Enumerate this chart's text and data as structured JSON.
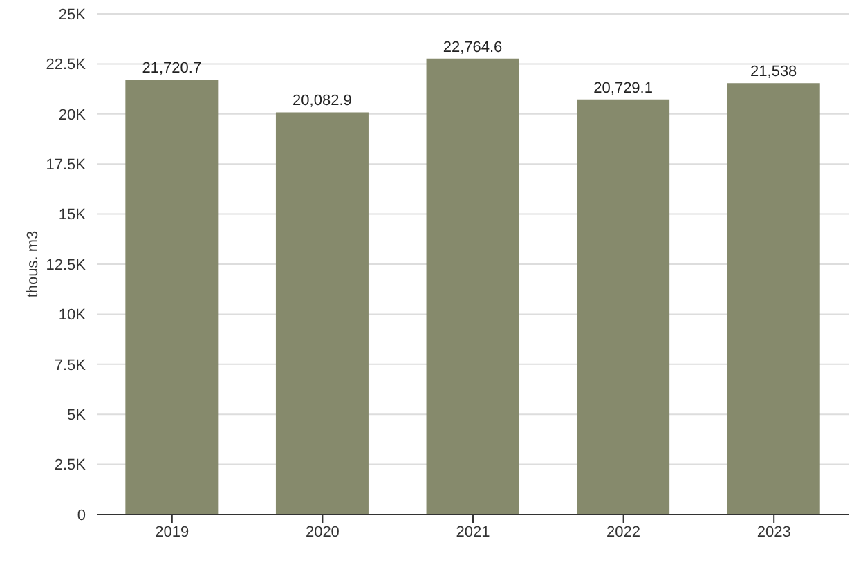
{
  "chart_data": {
    "type": "bar",
    "ylabel": "thous. m3",
    "categories": [
      "2019",
      "2020",
      "2021",
      "2022",
      "2023"
    ],
    "values": [
      21720.7,
      20082.9,
      22764.6,
      20729.1,
      21538
    ],
    "value_labels": [
      "21,720.7",
      "20,082.9",
      "22,764.6",
      "20,729.1",
      "21,538"
    ],
    "color": "#868a6c",
    "ylim": [
      0,
      25000
    ],
    "yticks": [
      0,
      {
        "value": 2500,
        "label": "2.5K"
      },
      {
        "value": 5000,
        "label": "5K"
      },
      {
        "value": 7500,
        "label": "7.5K"
      },
      {
        "value": 10000,
        "label": "10K"
      },
      {
        "value": 12500,
        "label": "12.5K"
      },
      {
        "value": 15000,
        "label": "15K"
      },
      {
        "value": 17500,
        "label": "17.5K"
      },
      {
        "value": 20000,
        "label": "20K"
      },
      {
        "value": 22500,
        "label": "22.5K"
      },
      {
        "value": 25000,
        "label": "25K"
      }
    ],
    "grid": "y"
  }
}
